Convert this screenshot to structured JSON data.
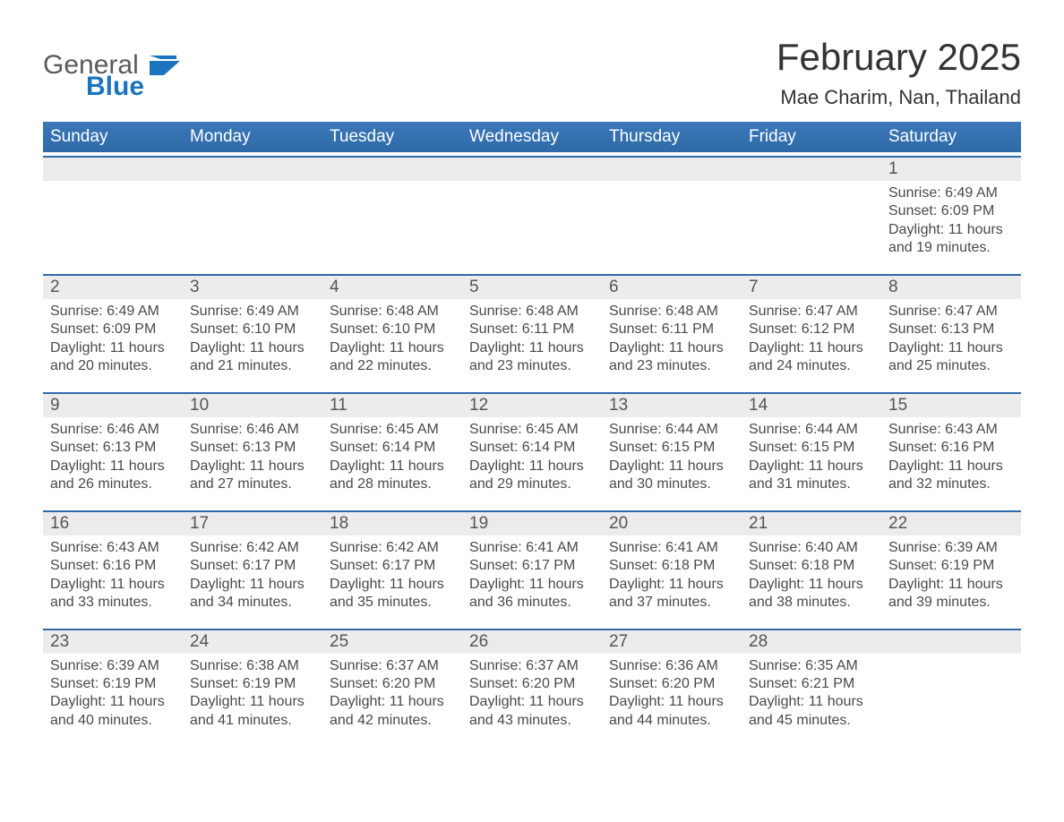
{
  "brand": {
    "word1": "General",
    "word2": "Blue",
    "mark_color": "#1c75bc"
  },
  "title": "February 2025",
  "subtitle": "Mae Charim, Nan, Thailand",
  "colors": {
    "header_bg": "#3b78b8",
    "header_bg_dark": "#2f6aa8",
    "row_grey": "#ececec",
    "rule_blue": "#2f6aa8",
    "brand_blue": "#1c75bc",
    "text": "#222222",
    "muted": "#4a4a4a"
  },
  "day_names": [
    "Sunday",
    "Monday",
    "Tuesday",
    "Wednesday",
    "Thursday",
    "Friday",
    "Saturday"
  ],
  "labels": {
    "sunrise": "Sunrise",
    "sunset": "Sunset",
    "daylight": "Daylight"
  },
  "month": {
    "first_weekday_index": 6,
    "days_in_month": 28
  },
  "days": [
    {
      "n": 1,
      "sunrise": "6:49 AM",
      "sunset": "6:09 PM",
      "daylight": "11 hours and 19 minutes."
    },
    {
      "n": 2,
      "sunrise": "6:49 AM",
      "sunset": "6:09 PM",
      "daylight": "11 hours and 20 minutes."
    },
    {
      "n": 3,
      "sunrise": "6:49 AM",
      "sunset": "6:10 PM",
      "daylight": "11 hours and 21 minutes."
    },
    {
      "n": 4,
      "sunrise": "6:48 AM",
      "sunset": "6:10 PM",
      "daylight": "11 hours and 22 minutes."
    },
    {
      "n": 5,
      "sunrise": "6:48 AM",
      "sunset": "6:11 PM",
      "daylight": "11 hours and 23 minutes."
    },
    {
      "n": 6,
      "sunrise": "6:48 AM",
      "sunset": "6:11 PM",
      "daylight": "11 hours and 23 minutes."
    },
    {
      "n": 7,
      "sunrise": "6:47 AM",
      "sunset": "6:12 PM",
      "daylight": "11 hours and 24 minutes."
    },
    {
      "n": 8,
      "sunrise": "6:47 AM",
      "sunset": "6:13 PM",
      "daylight": "11 hours and 25 minutes."
    },
    {
      "n": 9,
      "sunrise": "6:46 AM",
      "sunset": "6:13 PM",
      "daylight": "11 hours and 26 minutes."
    },
    {
      "n": 10,
      "sunrise": "6:46 AM",
      "sunset": "6:13 PM",
      "daylight": "11 hours and 27 minutes."
    },
    {
      "n": 11,
      "sunrise": "6:45 AM",
      "sunset": "6:14 PM",
      "daylight": "11 hours and 28 minutes."
    },
    {
      "n": 12,
      "sunrise": "6:45 AM",
      "sunset": "6:14 PM",
      "daylight": "11 hours and 29 minutes."
    },
    {
      "n": 13,
      "sunrise": "6:44 AM",
      "sunset": "6:15 PM",
      "daylight": "11 hours and 30 minutes."
    },
    {
      "n": 14,
      "sunrise": "6:44 AM",
      "sunset": "6:15 PM",
      "daylight": "11 hours and 31 minutes."
    },
    {
      "n": 15,
      "sunrise": "6:43 AM",
      "sunset": "6:16 PM",
      "daylight": "11 hours and 32 minutes."
    },
    {
      "n": 16,
      "sunrise": "6:43 AM",
      "sunset": "6:16 PM",
      "daylight": "11 hours and 33 minutes."
    },
    {
      "n": 17,
      "sunrise": "6:42 AM",
      "sunset": "6:17 PM",
      "daylight": "11 hours and 34 minutes."
    },
    {
      "n": 18,
      "sunrise": "6:42 AM",
      "sunset": "6:17 PM",
      "daylight": "11 hours and 35 minutes."
    },
    {
      "n": 19,
      "sunrise": "6:41 AM",
      "sunset": "6:17 PM",
      "daylight": "11 hours and 36 minutes."
    },
    {
      "n": 20,
      "sunrise": "6:41 AM",
      "sunset": "6:18 PM",
      "daylight": "11 hours and 37 minutes."
    },
    {
      "n": 21,
      "sunrise": "6:40 AM",
      "sunset": "6:18 PM",
      "daylight": "11 hours and 38 minutes."
    },
    {
      "n": 22,
      "sunrise": "6:39 AM",
      "sunset": "6:19 PM",
      "daylight": "11 hours and 39 minutes."
    },
    {
      "n": 23,
      "sunrise": "6:39 AM",
      "sunset": "6:19 PM",
      "daylight": "11 hours and 40 minutes."
    },
    {
      "n": 24,
      "sunrise": "6:38 AM",
      "sunset": "6:19 PM",
      "daylight": "11 hours and 41 minutes."
    },
    {
      "n": 25,
      "sunrise": "6:37 AM",
      "sunset": "6:20 PM",
      "daylight": "11 hours and 42 minutes."
    },
    {
      "n": 26,
      "sunrise": "6:37 AM",
      "sunset": "6:20 PM",
      "daylight": "11 hours and 43 minutes."
    },
    {
      "n": 27,
      "sunrise": "6:36 AM",
      "sunset": "6:20 PM",
      "daylight": "11 hours and 44 minutes."
    },
    {
      "n": 28,
      "sunrise": "6:35 AM",
      "sunset": "6:21 PM",
      "daylight": "11 hours and 45 minutes."
    }
  ]
}
